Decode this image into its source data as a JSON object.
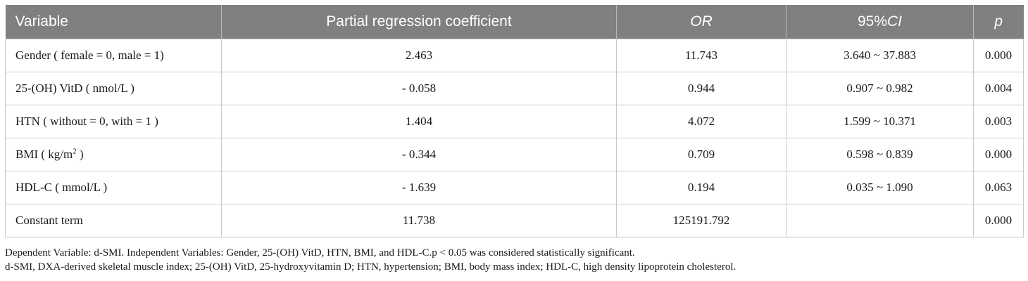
{
  "table": {
    "headers": {
      "variable": "Variable",
      "coef": "Partial regression coefficient",
      "or": "OR",
      "ci_prefix": "95%",
      "ci_suffix": "CI",
      "p": "p"
    },
    "rows": [
      {
        "variable": "Gender ( female = 0, male = 1)",
        "coef": "2.463",
        "or": "11.743",
        "ci": "3.640 ~ 37.883",
        "p": "0.000"
      },
      {
        "variable": "25-(OH) VitD ( nmol/L )",
        "coef": "- 0.058",
        "or": "0.944",
        "ci": "0.907 ~ 0.982",
        "p": "0.004"
      },
      {
        "variable": "HTN ( without = 0, with = 1 )",
        "coef": "1.404",
        "or": "4.072",
        "ci": "1.599 ~ 10.371",
        "p": "0.003"
      },
      {
        "variable_prefix": "BMI ( kg/m",
        "variable_sup": "2",
        "variable_suffix": " )",
        "coef": "- 0.344",
        "or": "0.709",
        "ci": "0.598 ~ 0.839",
        "p": "0.000"
      },
      {
        "variable": "HDL-C ( mmol/L )",
        "coef": "- 1.639",
        "or": "0.194",
        "ci": "0.035 ~ 1.090",
        "p": "0.063"
      },
      {
        "variable": "Constant term",
        "coef": "11.738",
        "or": "125191.792",
        "ci": "",
        "p": "0.000"
      }
    ]
  },
  "notes": {
    "line1": "Dependent Variable: d-SMI. Independent Variables: Gender, 25-(OH) VitD, HTN, BMI, and HDL-C.p < 0.05 was considered statistically significant.",
    "line2": "d-SMI, DXA-derived skeletal muscle index; 25-(OH) VitD, 25-hydroxyvitamin D; HTN, hypertension; BMI, body mass index; HDL-C, high density lipoprotein cholesterol."
  }
}
